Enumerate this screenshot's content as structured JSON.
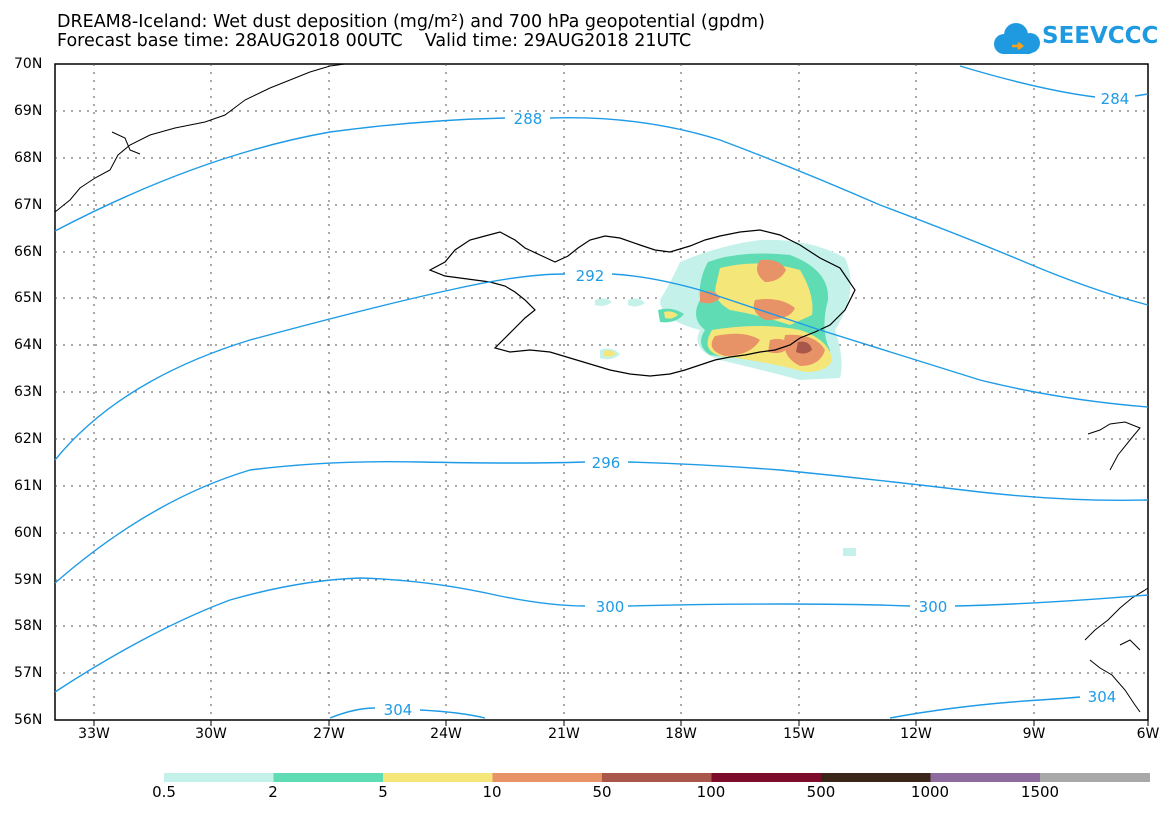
{
  "header": {
    "title_line1": "DREAM8-Iceland: Wet dust deposition (mg/m²) and 700 hPa geopotential (gpdm)",
    "title_line2": "Forecast base time: 28AUG2018 00UTC    Valid time: 29AUG2018 21UTC"
  },
  "logo": {
    "text": "SEEVCCC",
    "color": "#1f9ae0"
  },
  "axes": {
    "lat_labels": [
      "70N",
      "69N",
      "68N",
      "67N",
      "66N",
      "65N",
      "64N",
      "63N",
      "62N",
      "61N",
      "60N",
      "59N",
      "58N",
      "57N",
      "56N"
    ],
    "lon_labels": [
      "33W",
      "30W",
      "27W",
      "24W",
      "21W",
      "18W",
      "15W",
      "12W",
      "9W",
      "6W"
    ]
  },
  "contours": {
    "color": "#1e9be6",
    "labels": [
      "284",
      "288",
      "292",
      "296",
      "300",
      "300",
      "304",
      "304"
    ]
  },
  "colorbar": {
    "colors": [
      "#c4f2ea",
      "#5fdcb4",
      "#f5e67a",
      "#e89267",
      "#a8574a",
      "#7c0c2a",
      "#3b2418",
      "#8d6b9e",
      "#a8a8a8"
    ],
    "labels": [
      "0.5",
      "2",
      "5",
      "10",
      "50",
      "100",
      "500",
      "1000",
      "1500"
    ]
  }
}
